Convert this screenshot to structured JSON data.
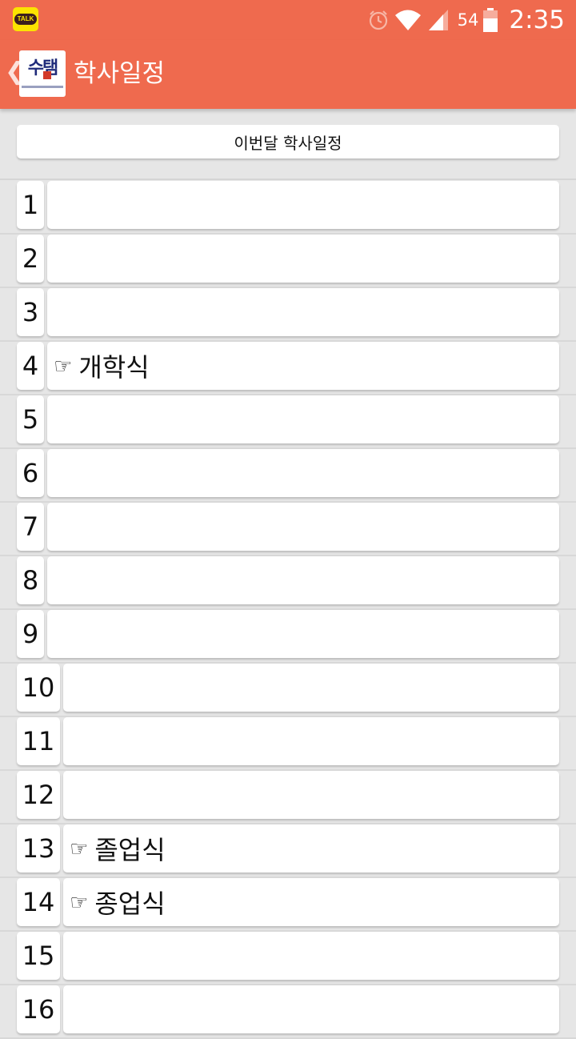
{
  "status_bar": {
    "notification_icon": "kakaotalk-icon",
    "notification_label": "TALK",
    "battery_percent": "54",
    "time": "2:35"
  },
  "app_bar": {
    "back_icon": "chevron-left-icon",
    "logo_text": "수탬",
    "title": "학사일정"
  },
  "month_button": {
    "label": "이번달 학사일정"
  },
  "pointer_glyph": "☞",
  "days": [
    {
      "day": "1",
      "event": ""
    },
    {
      "day": "2",
      "event": ""
    },
    {
      "day": "3",
      "event": ""
    },
    {
      "day": "4",
      "event": "개학식"
    },
    {
      "day": "5",
      "event": ""
    },
    {
      "day": "6",
      "event": ""
    },
    {
      "day": "7",
      "event": ""
    },
    {
      "day": "8",
      "event": ""
    },
    {
      "day": "9",
      "event": ""
    },
    {
      "day": "10",
      "event": ""
    },
    {
      "day": "11",
      "event": ""
    },
    {
      "day": "12",
      "event": ""
    },
    {
      "day": "13",
      "event": "졸업식"
    },
    {
      "day": "14",
      "event": "종업식"
    },
    {
      "day": "15",
      "event": ""
    },
    {
      "day": "16",
      "event": ""
    }
  ],
  "colors": {
    "accent": "#ef6a4e",
    "background": "#e6e6e6",
    "card": "#ffffff"
  }
}
